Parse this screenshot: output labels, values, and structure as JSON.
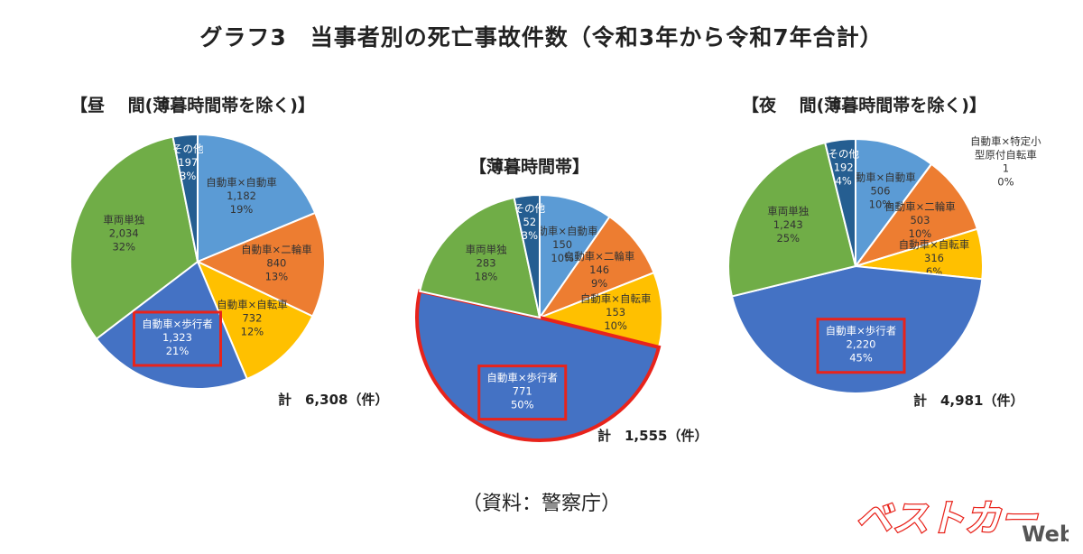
{
  "title": "グラフ3　当事者別の死亡事故件数（令和3年から令和7年合計）",
  "source": "（資料：警察庁）",
  "logo": {
    "main": "ベストカー",
    "sub": "Web"
  },
  "colors": {
    "car_car": "#5b9bd5",
    "car_moto": "#ed7d31",
    "car_bike": "#ffc000",
    "car_ped": "#4472c4",
    "single": "#70ad47",
    "other": "#255e91",
    "special": "#a5a5a5",
    "highlight": "#e8231b",
    "logo": "#e8231b"
  },
  "chart_data": [
    {
      "type": "pie",
      "title": "【昼　 間(薄暮時間帯を除く)】",
      "total": "計　6,308（件）",
      "slices": [
        {
          "key": "car_car",
          "name": "自動車×自動車",
          "value": 1182,
          "value_label": "1,182",
          "pct": "19%"
        },
        {
          "key": "car_moto",
          "name": "自動車×二輪車",
          "value": 840,
          "value_label": "840",
          "pct": "13%"
        },
        {
          "key": "car_bike",
          "name": "自動車×自転車",
          "value": 732,
          "value_label": "732",
          "pct": "12%"
        },
        {
          "key": "car_ped",
          "name": "自動車×歩行者",
          "value": 1323,
          "value_label": "1,323",
          "pct": "21%",
          "highlight": true
        },
        {
          "key": "single",
          "name": "車両単独",
          "value": 2034,
          "value_label": "2,034",
          "pct": "32%"
        },
        {
          "key": "other",
          "name": "その他",
          "value": 197,
          "value_label": "197",
          "pct": "3%"
        }
      ]
    },
    {
      "type": "pie",
      "title": "【薄暮時間帯】",
      "total": "計　1,555（件）",
      "slices": [
        {
          "key": "car_car",
          "name": "自動車×自動車",
          "value": 150,
          "value_label": "150",
          "pct": "10%"
        },
        {
          "key": "car_moto",
          "name": "自動車×二輪車",
          "value": 146,
          "value_label": "146",
          "pct": "9%"
        },
        {
          "key": "car_bike",
          "name": "自動車×自転車",
          "value": 153,
          "value_label": "153",
          "pct": "10%"
        },
        {
          "key": "car_ped",
          "name": "自動車×歩行者",
          "value": 771,
          "value_label": "771",
          "pct": "50%",
          "highlight": true
        },
        {
          "key": "single",
          "name": "車両単独",
          "value": 283,
          "value_label": "283",
          "pct": "18%"
        },
        {
          "key": "other",
          "name": "その他",
          "value": 52,
          "value_label": "52",
          "pct": "3%"
        }
      ]
    },
    {
      "type": "pie",
      "title": "【夜　 間(薄暮時間帯を除く)】",
      "total": "計　4,981（件）",
      "slices": [
        {
          "key": "car_car",
          "name": "自動車×自動車",
          "value": 506,
          "value_label": "506",
          "pct": "10%"
        },
        {
          "key": "special",
          "name": "自動車×特定小型原付自転車",
          "value": 1,
          "value_label": "1",
          "pct": "0%"
        },
        {
          "key": "car_moto",
          "name": "自動車×二輪車",
          "value": 503,
          "value_label": "503",
          "pct": "10%"
        },
        {
          "key": "car_bike",
          "name": "自動車×自転車",
          "value": 316,
          "value_label": "316",
          "pct": "6%"
        },
        {
          "key": "car_ped",
          "name": "自動車×歩行者",
          "value": 2220,
          "value_label": "2,220",
          "pct": "45%",
          "highlight": true
        },
        {
          "key": "single",
          "name": "車両単独",
          "value": 1243,
          "value_label": "1,243",
          "pct": "25%"
        },
        {
          "key": "other",
          "name": "その他",
          "value": 192,
          "value_label": "192",
          "pct": "4%"
        }
      ]
    }
  ]
}
